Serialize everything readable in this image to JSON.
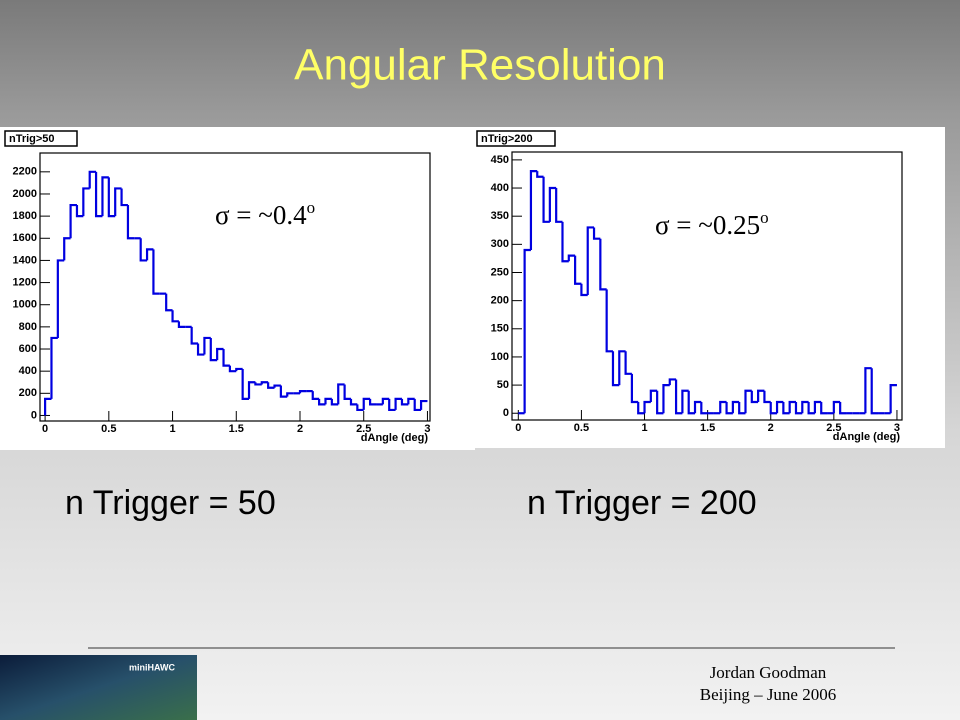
{
  "slide": {
    "title": "Angular Resolution",
    "footer": {
      "author": "Jordan Goodman",
      "event": "Beijing – June 2006"
    },
    "logo": "miniHAWC"
  },
  "chart_data": [
    {
      "type": "histogram",
      "stat_label": "nTrig>50",
      "xlabel": "dAngle (deg)",
      "color": "#0000e0",
      "annotation": {
        "text": "σ = ~0.4",
        "superscript": "o"
      },
      "caption": "n Trigger = 50",
      "bins": [
        0,
        0.05,
        0.1,
        0.15,
        0.2,
        0.25,
        0.3,
        0.35,
        0.4,
        0.45,
        0.5,
        0.55,
        0.6,
        0.65,
        0.7,
        0.75,
        0.8,
        0.85,
        0.9,
        0.95,
        1,
        1.05,
        1.1,
        1.15,
        1.2,
        1.25,
        1.3,
        1.35,
        1.4,
        1.45,
        1.5,
        1.55,
        1.6,
        1.65,
        1.7,
        1.75,
        1.8,
        1.85,
        1.9,
        1.95,
        2,
        2.05,
        2.1,
        2.15,
        2.2,
        2.25,
        2.3,
        2.35,
        2.4,
        2.45,
        2.5,
        2.55,
        2.6,
        2.65,
        2.7,
        2.75,
        2.8,
        2.85,
        2.9,
        2.95,
        3
      ],
      "values": [
        150,
        700,
        1400,
        1600,
        1900,
        1800,
        2050,
        2200,
        1800,
        2150,
        1800,
        2050,
        1900,
        1600,
        1600,
        1400,
        1500,
        1100,
        1100,
        950,
        850,
        800,
        800,
        650,
        550,
        700,
        500,
        600,
        450,
        400,
        420,
        150,
        300,
        280,
        300,
        250,
        270,
        170,
        200,
        200,
        220,
        220,
        150,
        100,
        150,
        100,
        280,
        150,
        100,
        50,
        150,
        100,
        100,
        150,
        50,
        150,
        100,
        150,
        50,
        130
      ],
      "xlim": [
        -0.04,
        3.02
      ],
      "xticks": [
        0,
        0.5,
        1,
        1.5,
        2,
        2.5,
        3
      ],
      "ylim": [
        -50,
        2370
      ],
      "yticks": [
        0,
        200,
        400,
        600,
        800,
        1000,
        1200,
        1400,
        1600,
        1800,
        2000,
        2200
      ]
    },
    {
      "type": "histogram",
      "stat_label": "nTrig>200",
      "xlabel": "dAngle (deg)",
      "color": "#0000e0",
      "annotation": {
        "text": "σ = ~0.25",
        "superscript": "o"
      },
      "caption": "n Trigger = 200",
      "bins": [
        0,
        0.05,
        0.1,
        0.15,
        0.2,
        0.25,
        0.3,
        0.35,
        0.4,
        0.45,
        0.5,
        0.55,
        0.6,
        0.65,
        0.7,
        0.75,
        0.8,
        0.85,
        0.9,
        0.95,
        1,
        1.05,
        1.1,
        1.15,
        1.2,
        1.25,
        1.3,
        1.35,
        1.4,
        1.45,
        1.5,
        1.55,
        1.6,
        1.65,
        1.7,
        1.75,
        1.8,
        1.85,
        1.9,
        1.95,
        2,
        2.05,
        2.1,
        2.15,
        2.2,
        2.25,
        2.3,
        2.35,
        2.4,
        2.45,
        2.5,
        2.55,
        2.6,
        2.65,
        2.7,
        2.75,
        2.8,
        2.85,
        2.9,
        2.95,
        3
      ],
      "values": [
        0,
        290,
        430,
        420,
        340,
        400,
        340,
        270,
        280,
        230,
        210,
        330,
        310,
        220,
        110,
        50,
        110,
        70,
        20,
        0,
        20,
        40,
        0,
        50,
        60,
        0,
        40,
        0,
        20,
        0,
        0,
        0,
        20,
        0,
        20,
        0,
        40,
        20,
        40,
        20,
        0,
        20,
        0,
        20,
        0,
        20,
        0,
        20,
        0,
        0,
        20,
        0,
        0,
        0,
        0,
        80,
        0,
        0,
        0,
        50
      ],
      "xlim": [
        -0.05,
        3.04
      ],
      "xticks": [
        0,
        0.5,
        1,
        1.5,
        2,
        2.5,
        3
      ],
      "ylim": [
        -12,
        464
      ],
      "yticks": [
        0,
        50,
        100,
        150,
        200,
        250,
        300,
        350,
        400,
        450
      ]
    }
  ]
}
